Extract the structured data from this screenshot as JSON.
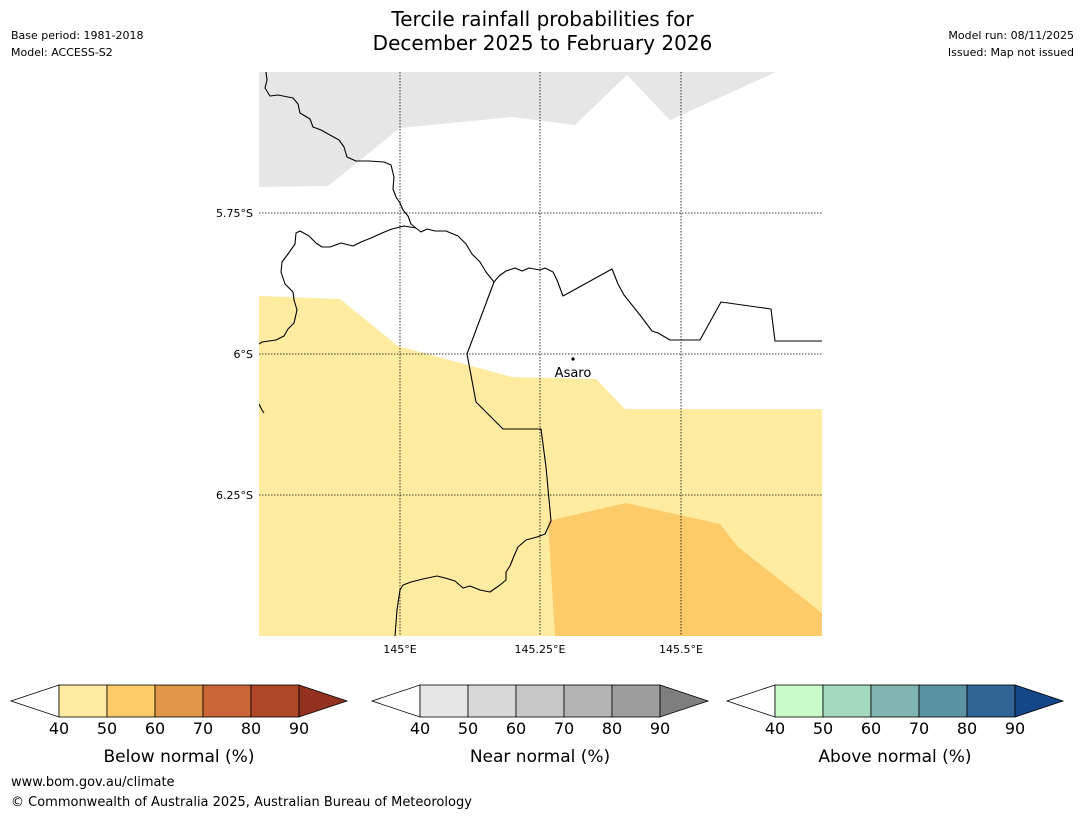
{
  "header": {
    "title_line1": "Tercile rainfall probabilities for",
    "title_line2": "December 2025 to February 2026",
    "base_period": "Base period: 1981-2018",
    "model": "Model: ACCESS-S2",
    "model_run": "Model run: 08/11/2025",
    "issued": "Issued: Map not issued"
  },
  "map": {
    "lat_labels": [
      "5.75°S",
      "6°S",
      "6.25°S"
    ],
    "lon_labels": [
      "145°E",
      "145.25°E",
      "145.5°E"
    ],
    "place_label": "Asaro",
    "colors": {
      "near_normal_40_50": "#e6e6e6",
      "below_40_50": "#ffeca1",
      "below_50_60": "#fdcb69"
    }
  },
  "colorbars": [
    {
      "label": "Below normal (%)",
      "ticks": [
        "40",
        "50",
        "60",
        "70",
        "80",
        "90"
      ],
      "colors": [
        "#ffeca1",
        "#fdcb69",
        "#e09548",
        "#cc6535",
        "#ad4727",
        "#92321e"
      ]
    },
    {
      "label": "Near normal (%)",
      "ticks": [
        "40",
        "50",
        "60",
        "70",
        "80",
        "90"
      ],
      "colors": [
        "#e6e6e6",
        "#d8d8d8",
        "#c8c8c8",
        "#b4b4b4",
        "#9e9e9e",
        "#7e7e7e"
      ]
    },
    {
      "label": "Above normal (%)",
      "ticks": [
        "40",
        "50",
        "60",
        "70",
        "80",
        "90"
      ],
      "colors": [
        "#c9fcc9",
        "#a3d9bc",
        "#80b6b1",
        "#5b93a2",
        "#306594",
        "#134787"
      ]
    }
  ],
  "footer": {
    "url": "www.bom.gov.au/climate",
    "copyright": "© Commonwealth of Australia 2025, Australian Bureau of Meteorology"
  }
}
